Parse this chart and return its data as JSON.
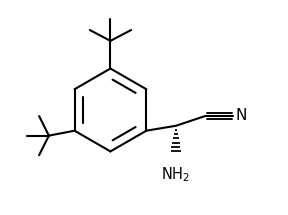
{
  "bg_color": "#ffffff",
  "line_color": "#000000",
  "line_width": 1.5,
  "figsize": [
    2.88,
    2.15
  ],
  "dpi": 100,
  "font_size": 10.5,
  "font_size_n": 11
}
